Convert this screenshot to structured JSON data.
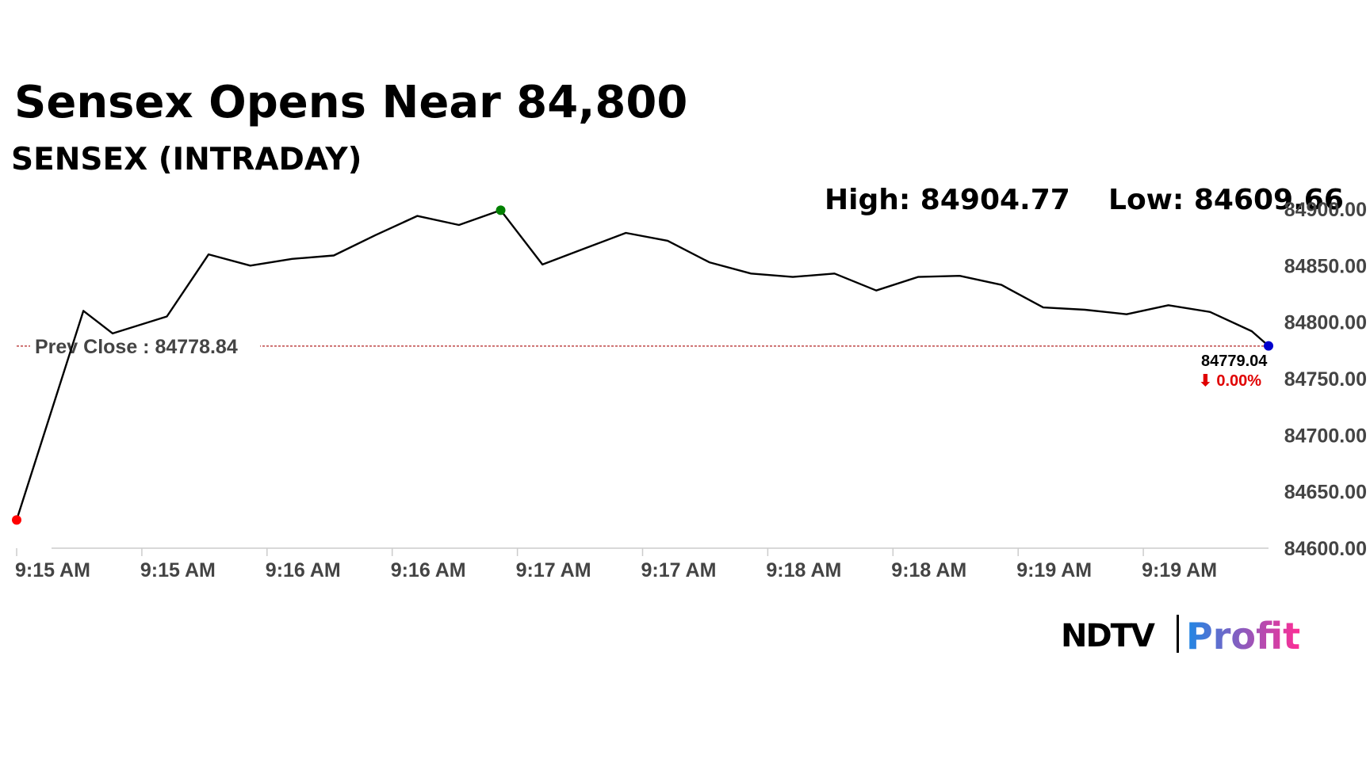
{
  "headline": "Sensex Opens Near 84,800",
  "subtitle": "SENSEX (INTRADAY)",
  "high_label": "High: 84904.77",
  "low_label": "Low: 84609.66",
  "prev_close_label": "Prev Close : 84778.84",
  "last_value_label": "84779.04",
  "change_label": "⬇ 0.00%",
  "brand": {
    "ndtv": "NDTV",
    "profit": "Profit"
  },
  "colors": {
    "line": "#000000",
    "prev_close_line": "#b22222",
    "open_marker": "#ff0000",
    "high_marker": "#008000",
    "last_marker": "#0000cd",
    "change_down": "#e00000",
    "brand_profit_start": "#1e88e5",
    "brand_profit_end": "#ff2d95",
    "axis": "#cccccc"
  },
  "chart_data": {
    "type": "line",
    "title": "Sensex Opens Near 84,800",
    "subtitle": "SENSEX (INTRADAY)",
    "ylim": [
      84600,
      84900
    ],
    "yticks": [
      84600,
      84650,
      84700,
      84750,
      84800,
      84850,
      84900
    ],
    "ytick_labels": [
      "84600.00",
      "84650.00",
      "84700.00",
      "84750.00",
      "84800.00",
      "84850.00",
      "84900.00"
    ],
    "xlim": [
      0,
      30
    ],
    "xticks": [
      0,
      3,
      6,
      9,
      12,
      15,
      18,
      21,
      24,
      27
    ],
    "xtick_labels": [
      "9:15 AM",
      "9:15 AM",
      "9:16 AM",
      "9:16 AM",
      "9:17 AM",
      "9:17 AM",
      "9:18 AM",
      "9:18 AM",
      "9:19 AM",
      "9:19 AM"
    ],
    "grid": false,
    "prev_close": 84778.84,
    "high": 84904.77,
    "low": 84609.66,
    "last": 84779.04,
    "change_pct": 0.0,
    "series": [
      {
        "x": [
          0,
          1.6,
          2.3,
          3.6,
          4.6,
          5.6,
          6.6,
          7.6,
          8.6,
          9.6,
          10.6,
          11.6,
          12.6,
          13.6,
          14.6,
          15.6,
          16.6,
          17.6,
          18.6,
          19.6,
          20.6,
          21.6,
          22.6,
          23.6,
          24.6,
          25.6,
          26.6,
          27.6,
          28.6,
          29.6,
          30
        ],
        "y": [
          84625,
          84810,
          84790,
          84805,
          84860,
          84850,
          84856,
          84859,
          84877,
          84894,
          84886,
          84899,
          84851,
          84865,
          84879,
          84872,
          84853,
          84843,
          84840,
          84843,
          84828,
          84840,
          84841,
          84833,
          84813,
          84811,
          84807,
          84815,
          84809,
          84792,
          84779
        ]
      }
    ],
    "markers": [
      {
        "name": "open",
        "x": 0,
        "y": 84625
      },
      {
        "name": "high",
        "x": 11.6,
        "y": 84899
      },
      {
        "name": "last",
        "x": 30,
        "y": 84779
      }
    ]
  }
}
